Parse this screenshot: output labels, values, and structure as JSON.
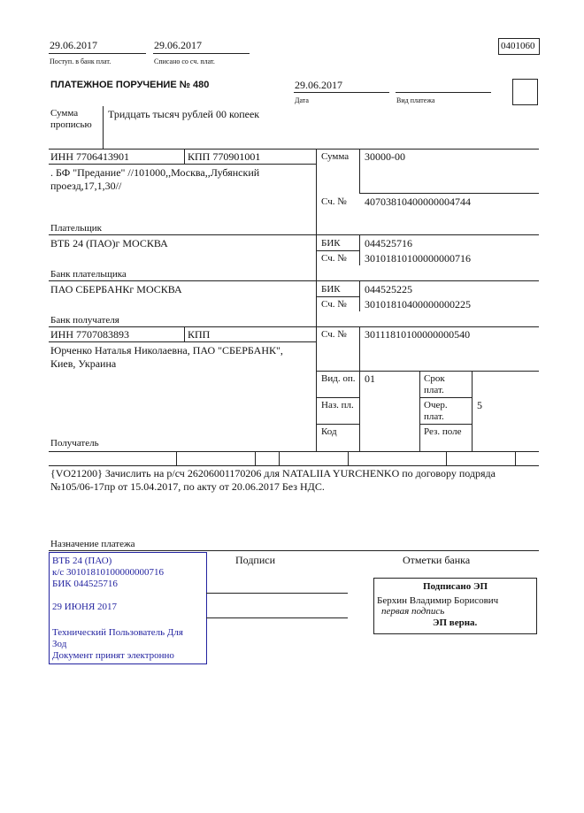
{
  "header": {
    "received_date": "29.06.2017",
    "received_label": "Поступ. в банк плат.",
    "debited_date": "29.06.2017",
    "debited_label": "Списано со сч. плат.",
    "form_code": "0401060",
    "title": "ПЛАТЕЖНОЕ ПОРУЧЕНИЕ № 480",
    "date": "29.06.2017",
    "date_label": "Дата",
    "payment_type_value": "",
    "payment_type_label": "Вид платежа"
  },
  "amount_words": {
    "label_1": "Сумма",
    "label_2": "прописью",
    "value": "Тридцать тысяч рублей 00 копеек"
  },
  "payer": {
    "inn": "ИНН 7706413901",
    "kpp": "КПП 770901001",
    "name_1": ". БФ \"Предание\" //101000,,Москва,,Лубянский",
    "name_2": "проезд,17,1,30//",
    "label": "Плательщик",
    "amount_label": "Сумма",
    "amount": "30000-00",
    "account_label": "Сч. №",
    "account": "40703810400000004744"
  },
  "payer_bank": {
    "name": "ВТБ 24 (ПАО)г МОСКВА",
    "label": "Банк плательщика",
    "bik_label": "БИК",
    "bik": "044525716",
    "account_label": "Сч. №",
    "account": "30101810100000000716"
  },
  "payee_bank": {
    "name": "ПАО СБЕРБАНКг МОСКВА",
    "label": "Банк получателя",
    "bik_label": "БИК",
    "bik": "044525225",
    "account_label": "Сч. №",
    "account": "30101810400000000225"
  },
  "payee": {
    "inn": "ИНН 7707083893",
    "kpp": "КПП",
    "name_1": "Юрченко Наталья Николаевна, ПАО \"СБЕРБАНК\",",
    "name_2": "Киев, Украина",
    "label": "Получатель",
    "account_label": "Сч. №",
    "account": "30111810100000000540"
  },
  "codes": {
    "op_type_label": "Вид. оп.",
    "op_type": "01",
    "purpose_label": "Наз. пл.",
    "code_label": "Код",
    "term_label_1": "Срок",
    "term_label_2": "плат.",
    "priority_label_1": "Очер.",
    "priority_label_2": "плат.",
    "priority": "5",
    "reserve_label": "Рез. поле"
  },
  "purpose": {
    "line_1": "{VO21200} Зачислить на р/сч 26206001170206 для NATALIIA YURCHENKO по договору подряда",
    "line_2": "№105/06-17пр от 15.04.2017, по акту от 20.06.2017 Без НДС.",
    "label": "Назначение платежа"
  },
  "stamp": {
    "line_1": "ВТБ 24 (ПАО)",
    "line_2": "к/с 30101810100000000716",
    "line_3": "БИК 044525716",
    "line_4": "29 ИЮНЯ 2017",
    "line_5": "Технический Пользователь Для",
    "line_6": "Зод",
    "line_7": "Документ принят электронно",
    "color": "#2323a0"
  },
  "signatures": {
    "label": "Подписи"
  },
  "bank_marks": {
    "label": "Отметки банка",
    "signed": "Подписано ЭП",
    "signer": "Берхин Владимир Борисович",
    "role": "первая подпись",
    "verified": "ЭП верна."
  }
}
